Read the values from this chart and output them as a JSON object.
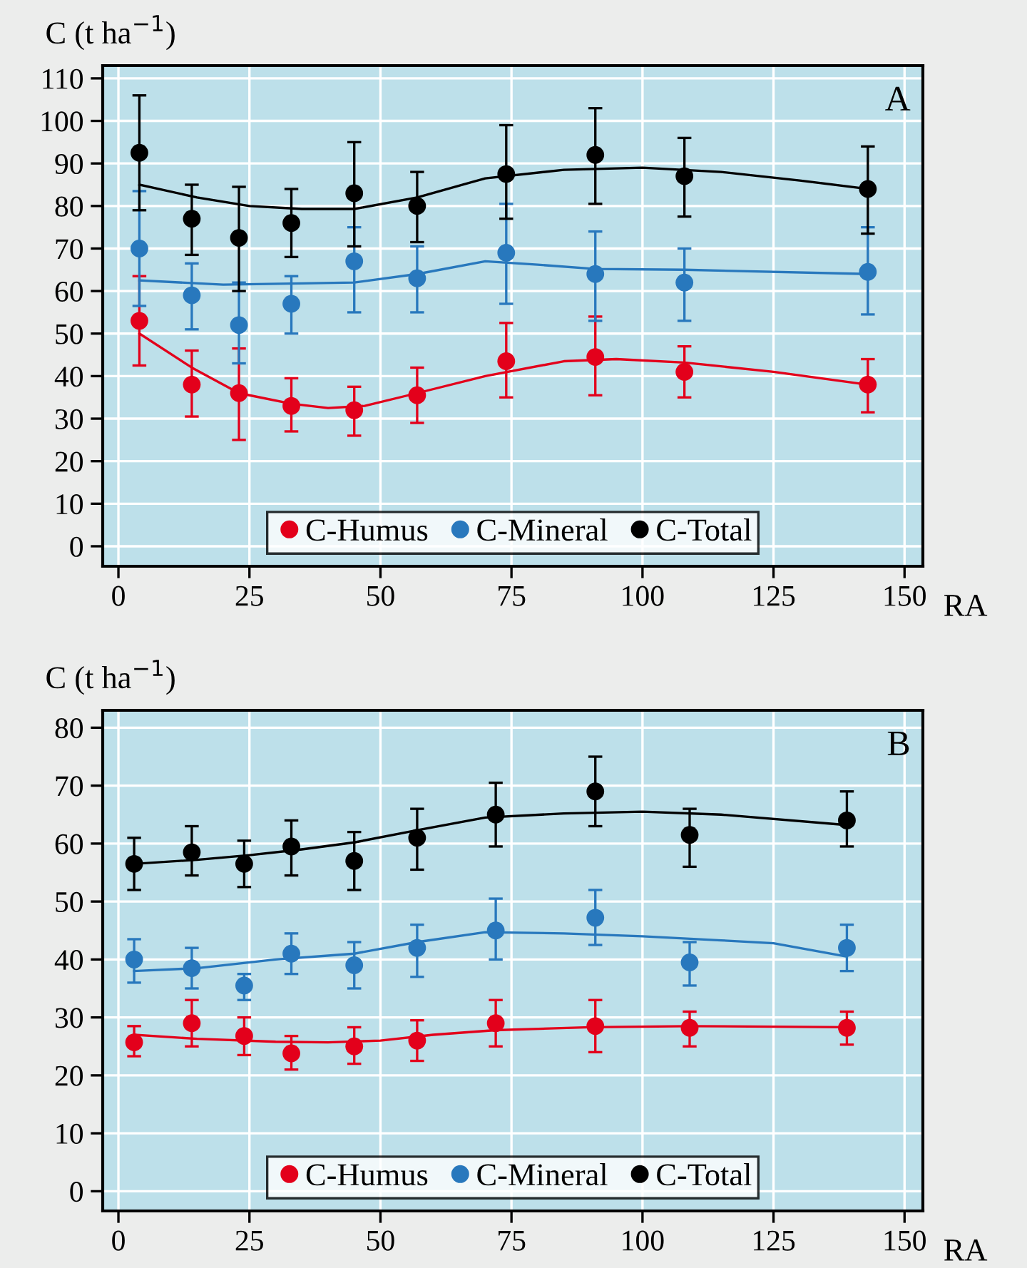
{
  "chart_data": [
    {
      "type": "scatter",
      "xlabel": "RA",
      "ylabel": "C (t ha$^{−1}$)",
      "annotations": [
        "A"
      ],
      "xlim": [
        -3,
        153.5
      ],
      "ylim": [
        -4.7,
        113
      ],
      "xticks": [
        0,
        25,
        50,
        75,
        100,
        125,
        150
      ],
      "yticks": [
        0,
        10,
        20,
        30,
        40,
        50,
        60,
        70,
        80,
        90,
        100,
        110
      ],
      "grid": true,
      "legend": "bottom",
      "marker": "circle",
      "series": [
        {
          "name": "C-Humus",
          "color": "#e3001b",
          "x": [
            4,
            14,
            23,
            33,
            45,
            57,
            74,
            91,
            108,
            143
          ],
          "values": [
            53,
            38,
            36,
            33,
            32,
            35.5,
            43.5,
            44.5,
            41,
            38
          ],
          "errors": [
            [
              42.5,
              63.5
            ],
            [
              30.5,
              46
            ],
            [
              25,
              46.5
            ],
            [
              27,
              39.5
            ],
            [
              26,
              37.5
            ],
            [
              29,
              42
            ],
            [
              35,
              52.5
            ],
            [
              35.5,
              54
            ],
            [
              35,
              47
            ],
            [
              31.5,
              44
            ]
          ]
        },
        {
          "name": "C-Mineral",
          "color": "#2878bd",
          "x": [
            4,
            14,
            23,
            33,
            45,
            57,
            74,
            91,
            108,
            143
          ],
          "values": [
            70,
            59,
            52,
            57,
            67,
            63,
            69,
            64,
            62,
            64.5
          ],
          "errors": [
            [
              56.5,
              83.5
            ],
            [
              51,
              66.5
            ],
            [
              43,
              62
            ],
            [
              50,
              63.5
            ],
            [
              55,
              75
            ],
            [
              55,
              70.5
            ],
            [
              57,
              80.5
            ],
            [
              53,
              74
            ],
            [
              53,
              70
            ],
            [
              54.5,
              75
            ]
          ]
        },
        {
          "name": "C-Total",
          "color": "#000000",
          "x": [
            4,
            14,
            23,
            33,
            45,
            57,
            74,
            91,
            108,
            143
          ],
          "values": [
            92.5,
            77,
            72.5,
            76,
            83,
            80,
            87.5,
            92,
            87,
            84
          ],
          "errors": [
            [
              79,
              106
            ],
            [
              68.5,
              85
            ],
            [
              60,
              84.5
            ],
            [
              68,
              84
            ],
            [
              70.5,
              95
            ],
            [
              71.5,
              88
            ],
            [
              77,
              99
            ],
            [
              80.5,
              103
            ],
            [
              77.5,
              96
            ],
            [
              73.5,
              94
            ]
          ]
        },
        {
          "type": "line",
          "marker": "none",
          "color": "#e3001b",
          "x": [
            4,
            14,
            23,
            33,
            40,
            47,
            57,
            70,
            85,
            95,
            108,
            125,
            143
          ],
          "values": [
            50,
            42,
            36,
            33.5,
            32.5,
            33,
            36,
            40,
            43.5,
            44,
            43.2,
            41,
            38
          ]
        },
        {
          "type": "line",
          "marker": "none",
          "color": "#2878bd",
          "x": [
            4,
            20,
            35,
            45,
            57,
            70,
            80,
            91,
            108,
            143
          ],
          "values": [
            62.5,
            61.5,
            61.8,
            62,
            64,
            67,
            66.2,
            65.2,
            65,
            64
          ]
        },
        {
          "type": "line",
          "marker": "none",
          "color": "#000000",
          "x": [
            4,
            15,
            25,
            35,
            45,
            57,
            70,
            85,
            100,
            115,
            130,
            143
          ],
          "values": [
            85,
            82,
            80,
            79.3,
            79.3,
            82,
            86.5,
            88.5,
            89,
            88,
            86,
            84
          ]
        }
      ]
    },
    {
      "type": "scatter",
      "xlabel": "RA",
      "ylabel": "C (t ha$^{−1}$)",
      "annotations": [
        "B"
      ],
      "xlim": [
        -3,
        153.5
      ],
      "ylim": [
        -3.4,
        83
      ],
      "xticks": [
        0,
        25,
        50,
        75,
        100,
        125,
        150
      ],
      "yticks": [
        0,
        10,
        20,
        30,
        40,
        50,
        60,
        70,
        80
      ],
      "grid": true,
      "legend": "bottom",
      "marker": "circle",
      "series": [
        {
          "name": "C-Humus",
          "color": "#e3001b",
          "x": [
            3,
            14,
            24,
            33,
            45,
            57,
            72,
            91,
            109,
            139
          ],
          "values": [
            25.7,
            29,
            26.8,
            23.8,
            25,
            26,
            29,
            28.5,
            28.2,
            28.2
          ],
          "errors": [
            [
              23.3,
              28.5
            ],
            [
              25,
              33
            ],
            [
              23.5,
              30
            ],
            [
              21,
              26.8
            ],
            [
              22,
              28.3
            ],
            [
              22.5,
              29.5
            ],
            [
              25,
              33
            ],
            [
              24,
              33
            ],
            [
              25,
              31
            ],
            [
              25.3,
              31
            ]
          ]
        },
        {
          "name": "C-Mineral",
          "color": "#2878bd",
          "x": [
            3,
            14,
            24,
            33,
            45,
            57,
            72,
            91,
            109,
            139
          ],
          "values": [
            40,
            38.5,
            35.5,
            41,
            39,
            42,
            45,
            47.2,
            39.5,
            42
          ],
          "errors": [
            [
              36,
              43.5
            ],
            [
              35,
              42
            ],
            [
              33,
              37.5
            ],
            [
              37.5,
              44.5
            ],
            [
              35,
              43
            ],
            [
              37,
              46
            ],
            [
              40,
              50.5
            ],
            [
              42.5,
              52
            ],
            [
              35.5,
              43
            ],
            [
              38,
              46
            ]
          ]
        },
        {
          "name": "C-Total",
          "color": "#000000",
          "x": [
            3,
            14,
            24,
            33,
            45,
            57,
            72,
            91,
            109,
            139
          ],
          "values": [
            56.5,
            58.5,
            56.5,
            59.5,
            57,
            61,
            65,
            69,
            61.5,
            64
          ],
          "errors": [
            [
              52,
              61
            ],
            [
              54.5,
              63
            ],
            [
              52.5,
              60.5
            ],
            [
              54.5,
              64
            ],
            [
              52,
              62
            ],
            [
              55.5,
              66
            ],
            [
              59.5,
              70.5
            ],
            [
              63,
              75
            ],
            [
              56,
              66
            ],
            [
              59.5,
              69
            ]
          ]
        },
        {
          "type": "line",
          "marker": "none",
          "color": "#e3001b",
          "x": [
            3,
            15,
            30,
            40,
            50,
            60,
            72,
            90,
            109,
            139
          ],
          "values": [
            27,
            26.3,
            25.8,
            25.7,
            26,
            27,
            27.8,
            28.3,
            28.5,
            28.3
          ]
        },
        {
          "type": "line",
          "marker": "none",
          "color": "#2878bd",
          "x": [
            3,
            15,
            30,
            45,
            57,
            70,
            85,
            100,
            115,
            125,
            139
          ],
          "values": [
            38,
            38.5,
            40,
            41,
            43,
            44.7,
            44.5,
            44,
            43.3,
            42.8,
            40.5
          ]
        },
        {
          "type": "line",
          "marker": "none",
          "color": "#000000",
          "x": [
            3,
            15,
            25,
            35,
            45,
            57,
            70,
            85,
            100,
            115,
            139
          ],
          "values": [
            56.5,
            57.2,
            58,
            59,
            60.2,
            62.3,
            64.5,
            65.2,
            65.5,
            65,
            63.2
          ]
        }
      ]
    }
  ]
}
